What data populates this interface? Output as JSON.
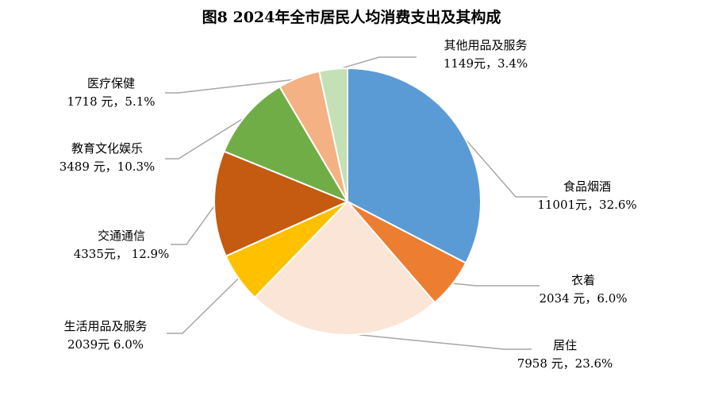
{
  "chart_data": {
    "type": "pie",
    "title": "图8  2024年全市居民人均消费支出及其构成",
    "slices": [
      {
        "name": "食品烟酒",
        "value": 11001,
        "percent": 32.6,
        "color": "#5B9BD5",
        "value_label": "11001元，32.6%"
      },
      {
        "name": "衣着",
        "value": 2034,
        "percent": 6.0,
        "color": "#ED7D31",
        "value_label": "2034 元，6.0%"
      },
      {
        "name": "居住",
        "value": 7958,
        "percent": 23.6,
        "color": "#FBE5D6",
        "value_label": "7958 元，23.6%"
      },
      {
        "name": "生活用品及服务",
        "value": 2039,
        "percent": 6.0,
        "color": "#FFC000",
        "value_label": "2039元 6.0%"
      },
      {
        "name": "交通通信",
        "value": 4335,
        "percent": 12.9,
        "color": "#C55A11",
        "value_label": "4335元， 12.9%"
      },
      {
        "name": "教育文化娱乐",
        "value": 3489,
        "percent": 10.3,
        "color": "#70AD47",
        "value_label": "3489 元，10.3%"
      },
      {
        "name": "医疗保健",
        "value": 1718,
        "percent": 5.1,
        "color": "#F4B183",
        "value_label": "1718 元，5.1%"
      },
      {
        "name": "其他用品及服务",
        "value": 1149,
        "percent": 3.4,
        "color": "#C5E0B4",
        "value_label": "1149元，3.4%"
      }
    ],
    "legend": "none"
  }
}
